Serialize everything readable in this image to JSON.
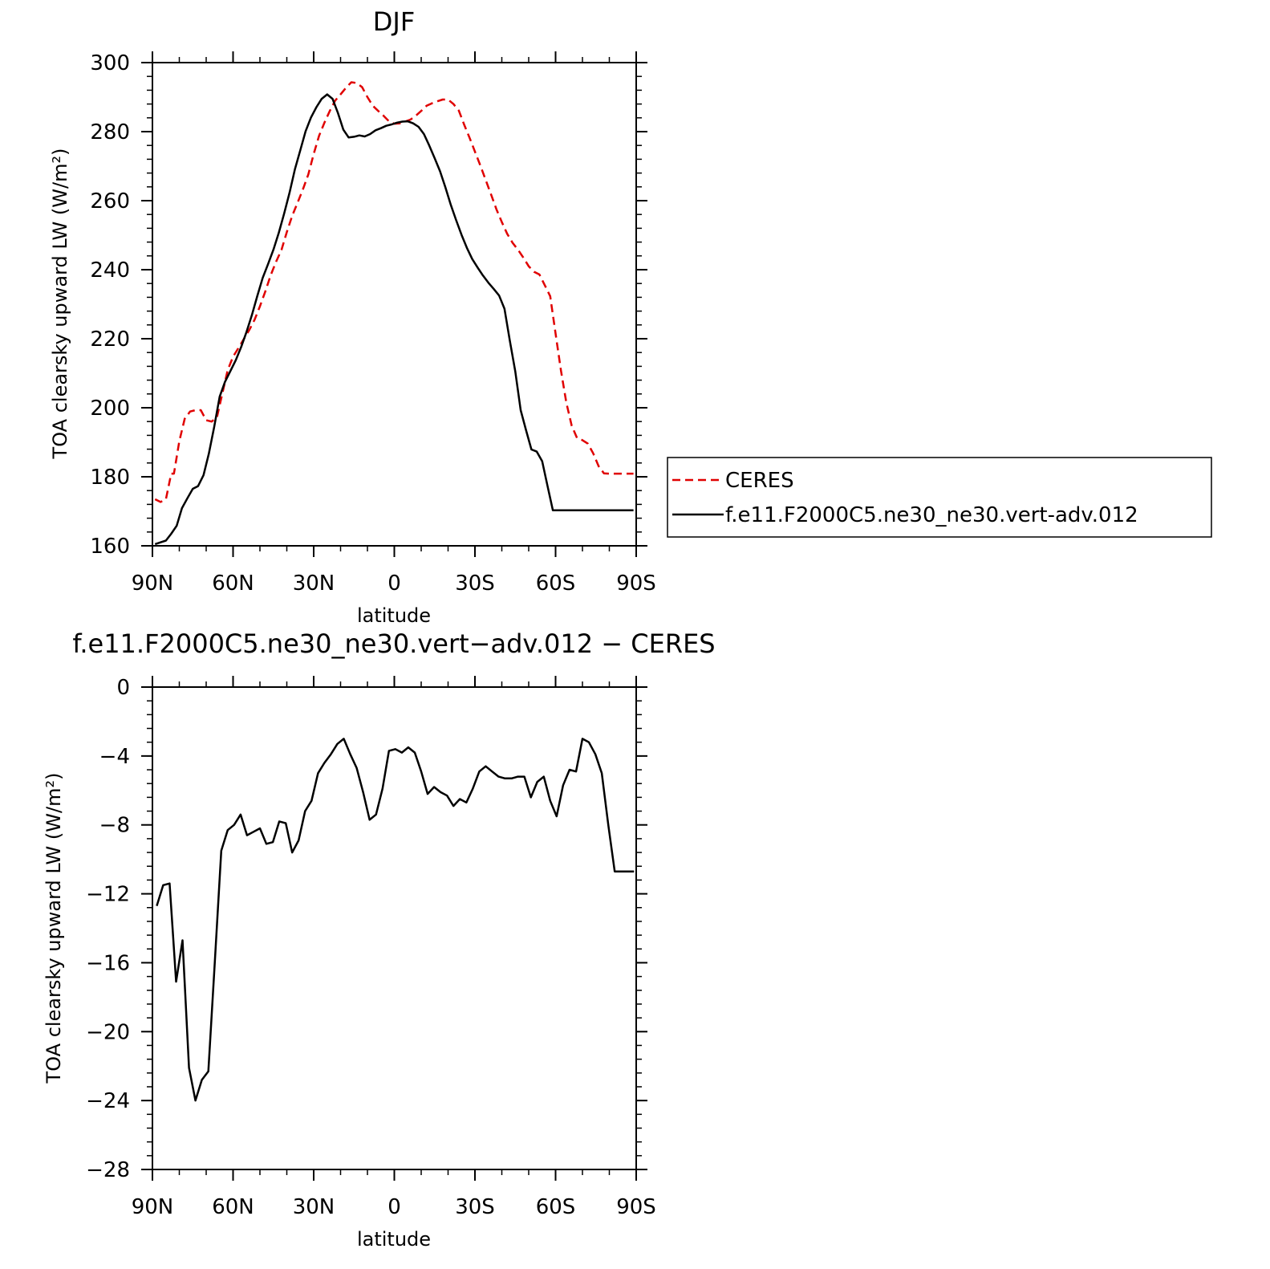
{
  "chart_data": [
    {
      "type": "line",
      "title": "DJF",
      "xlabel": "latitude",
      "ylabel": "TOA clearsky upward LW (W/m²)",
      "xlim": [
        90,
        -90
      ],
      "ylim": [
        160,
        300
      ],
      "x_ticks": [
        {
          "value": 90,
          "label": "90N"
        },
        {
          "value": 60,
          "label": "60N"
        },
        {
          "value": 30,
          "label": "30N"
        },
        {
          "value": 0,
          "label": "0"
        },
        {
          "value": -30,
          "label": "30S"
        },
        {
          "value": -60,
          "label": "60S"
        },
        {
          "value": -90,
          "label": "90S"
        }
      ],
      "y_ticks": [
        160,
        180,
        200,
        220,
        240,
        260,
        280,
        300
      ],
      "y_minor_step": 4,
      "x_minor_step": 10,
      "legend_position": "right",
      "series": [
        {
          "name": "CERES",
          "color": "#e00000",
          "dash": "dashed",
          "x": [
            89,
            87,
            85,
            83,
            82,
            80,
            78,
            76,
            74,
            72,
            70,
            68,
            66,
            64,
            62,
            60,
            58,
            56,
            54,
            52,
            50,
            48,
            46,
            44,
            42,
            40,
            38,
            36,
            34,
            32,
            30,
            28,
            26,
            24,
            22,
            20,
            18,
            16,
            14,
            12,
            10,
            8,
            6,
            4,
            2,
            0,
            -2,
            -4,
            -6,
            -8,
            -10,
            -12,
            -14,
            -16,
            -18,
            -20,
            -22,
            -24,
            -26,
            -28,
            -30,
            -32,
            -34,
            -36,
            -38,
            -40,
            -42,
            -44,
            -46,
            -48,
            -50,
            -52,
            -54,
            -56,
            -58,
            -60,
            -62,
            -64,
            -66,
            -68,
            -70,
            -72,
            -74,
            -76,
            -78,
            -80,
            -82,
            -84,
            -86,
            -88,
            -89
          ],
          "y": [
            173.5,
            172.7,
            173.5,
            180.9,
            180.9,
            190.3,
            196.8,
            198.9,
            199.3,
            199.3,
            196.4,
            196.0,
            197.2,
            204.1,
            210.9,
            214.8,
            217.3,
            219.9,
            222.5,
            225.5,
            229.4,
            233.7,
            238.4,
            242.3,
            245.7,
            250.9,
            255.6,
            259.4,
            263.3,
            267.6,
            273.5,
            278.8,
            282.6,
            286.0,
            289.0,
            290.8,
            292.7,
            294.3,
            294.1,
            292.9,
            290.0,
            287.5,
            286.0,
            284.6,
            283.0,
            282.3,
            282.4,
            282.9,
            283.5,
            284.6,
            286.0,
            287.5,
            288.2,
            288.8,
            289.3,
            289.3,
            288.0,
            286.1,
            282.0,
            278.2,
            274.2,
            270.2,
            266.0,
            261.8,
            257.5,
            253.8,
            250.4,
            247.8,
            245.8,
            243.5,
            241.0,
            239.4,
            238.6,
            235.5,
            232.3,
            221.5,
            210.8,
            201.5,
            194.8,
            191.2,
            190.6,
            189.6,
            186.8,
            183.1,
            181.0,
            180.9,
            180.9,
            180.9,
            180.9,
            180.9,
            180.9
          ]
        },
        {
          "name": "f.e11.F2000C5.ne30_ne30.vert-adv.012",
          "color": "#000000",
          "dash": "solid",
          "x": [
            89,
            87,
            85,
            83,
            81,
            79,
            77,
            75,
            73,
            71,
            69,
            67,
            65,
            63,
            61,
            59,
            57,
            55,
            53,
            51,
            49,
            47,
            45,
            43,
            41,
            39,
            37,
            35,
            33,
            31,
            29,
            27,
            25,
            23,
            21,
            19,
            17,
            15,
            13,
            11,
            9,
            7,
            5,
            3,
            1,
            -1,
            -3,
            -5,
            -7,
            -9,
            -11,
            -13,
            -15,
            -17,
            -19,
            -21,
            -23,
            -25,
            -27,
            -29,
            -31,
            -33,
            -35,
            -37,
            -39,
            -41,
            -43,
            -45,
            -47,
            -49,
            -51,
            -53,
            -55,
            -57,
            -59,
            -61,
            -63,
            -65,
            -67,
            -69,
            -71,
            -73,
            -75,
            -77,
            -79,
            -81,
            -83,
            -85,
            -87,
            -89
          ],
          "y": [
            160.5,
            161.0,
            161.5,
            163.5,
            165.8,
            170.9,
            173.8,
            176.5,
            177.3,
            180.5,
            186.8,
            194.6,
            203.2,
            207.5,
            210.6,
            213.8,
            217.6,
            222.0,
            226.8,
            232.3,
            237.6,
            241.6,
            245.8,
            250.7,
            256.2,
            262.3,
            269.1,
            274.6,
            280.1,
            284.1,
            287.1,
            289.5,
            290.8,
            289.5,
            285.5,
            280.6,
            278.3,
            278.5,
            278.9,
            278.6,
            279.3,
            280.4,
            281.0,
            281.7,
            282.1,
            282.6,
            282.9,
            283.0,
            282.4,
            281.4,
            279.3,
            276.0,
            272.3,
            268.5,
            263.9,
            258.8,
            254.4,
            250.1,
            246.3,
            243.1,
            240.6,
            238.3,
            236.2,
            234.4,
            232.5,
            228.7,
            219.4,
            210.5,
            199.3,
            193.5,
            187.9,
            187.3,
            184.5,
            177.3,
            170.3,
            170.3,
            170.3,
            170.3,
            170.3,
            170.3,
            170.3,
            170.3,
            170.3,
            170.3,
            170.3,
            170.3,
            170.3,
            170.3,
            170.3,
            170.3
          ]
        }
      ]
    },
    {
      "type": "line",
      "title": "f.e11.F2000C5.ne30_ne30.vert−adv.012 − CERES",
      "xlabel": "latitude",
      "ylabel": "TOA clearsky upward LW (W/m²)",
      "xlim": [
        90,
        -90
      ],
      "ylim": [
        -28,
        0
      ],
      "x_ticks": [
        {
          "value": 90,
          "label": "90N"
        },
        {
          "value": 60,
          "label": "60N"
        },
        {
          "value": 30,
          "label": "30N"
        },
        {
          "value": 0,
          "label": "0"
        },
        {
          "value": -30,
          "label": "30S"
        },
        {
          "value": -60,
          "label": "60S"
        },
        {
          "value": -90,
          "label": "90S"
        }
      ],
      "y_ticks": [
        {
          "value": 0,
          "label": "0"
        },
        {
          "value": -4,
          "label": "−4"
        },
        {
          "value": -8,
          "label": "−8"
        },
        {
          "value": -12,
          "label": "−12"
        },
        {
          "value": -16,
          "label": "−16"
        },
        {
          "value": -20,
          "label": "−20"
        },
        {
          "value": -24,
          "label": "−24"
        },
        {
          "value": -28,
          "label": "−28"
        }
      ],
      "y_minor_step": 0.8,
      "x_minor_step": 10,
      "series": [
        {
          "name": "",
          "color": "#000000",
          "dash": "solid",
          "x": [
            88.4,
            86.0,
            83.6,
            81.2,
            78.8,
            76.4,
            74.0,
            71.6,
            69.2,
            66.8,
            64.4,
            62.0,
            59.6,
            57.2,
            54.8,
            52.4,
            50.0,
            47.6,
            45.2,
            42.8,
            40.4,
            38.0,
            35.6,
            33.2,
            30.8,
            28.4,
            26.0,
            23.6,
            21.2,
            18.8,
            16.4,
            14.0,
            11.6,
            9.2,
            6.8,
            4.4,
            2.0,
            -0.4,
            -2.8,
            -5.2,
            -7.6,
            -10.0,
            -12.4,
            -14.8,
            -17.2,
            -19.6,
            -22.0,
            -24.4,
            -26.8,
            -29.2,
            -31.6,
            -34.0,
            -36.4,
            -38.8,
            -41.2,
            -43.6,
            -46.0,
            -48.4,
            -50.8,
            -53.2,
            -55.6,
            -58.0,
            -60.4,
            -62.8,
            -65.2,
            -67.6,
            -70.0,
            -72.4,
            -74.8,
            -77.2,
            -79.6,
            -82.0,
            -84.4,
            -86.8,
            -89.2
          ],
          "y": [
            -12.7,
            -11.5,
            -11.4,
            -17.1,
            -14.7,
            -22.1,
            -24.0,
            -22.8,
            -22.3,
            -16.0,
            -9.5,
            -8.3,
            -8.0,
            -7.4,
            -8.6,
            -8.4,
            -8.2,
            -9.1,
            -9.0,
            -7.8,
            -7.9,
            -9.6,
            -8.9,
            -7.2,
            -6.6,
            -5.0,
            -4.4,
            -3.9,
            -3.3,
            -3.0,
            -3.9,
            -4.7,
            -6.1,
            -7.7,
            -7.4,
            -5.9,
            -3.7,
            -3.6,
            -3.8,
            -3.5,
            -3.8,
            -4.9,
            -6.2,
            -5.8,
            -6.1,
            -6.3,
            -6.9,
            -6.5,
            -6.7,
            -5.9,
            -4.9,
            -4.6,
            -4.9,
            -5.2,
            -5.3,
            -5.3,
            -5.2,
            -5.2,
            -6.4,
            -5.5,
            -5.2,
            -6.6,
            -7.5,
            -5.7,
            -4.8,
            -4.9,
            -3.0,
            -3.2,
            -3.9,
            -5.0,
            -8.0,
            -10.7,
            -10.7,
            -10.7,
            -10.7
          ]
        }
      ]
    }
  ]
}
